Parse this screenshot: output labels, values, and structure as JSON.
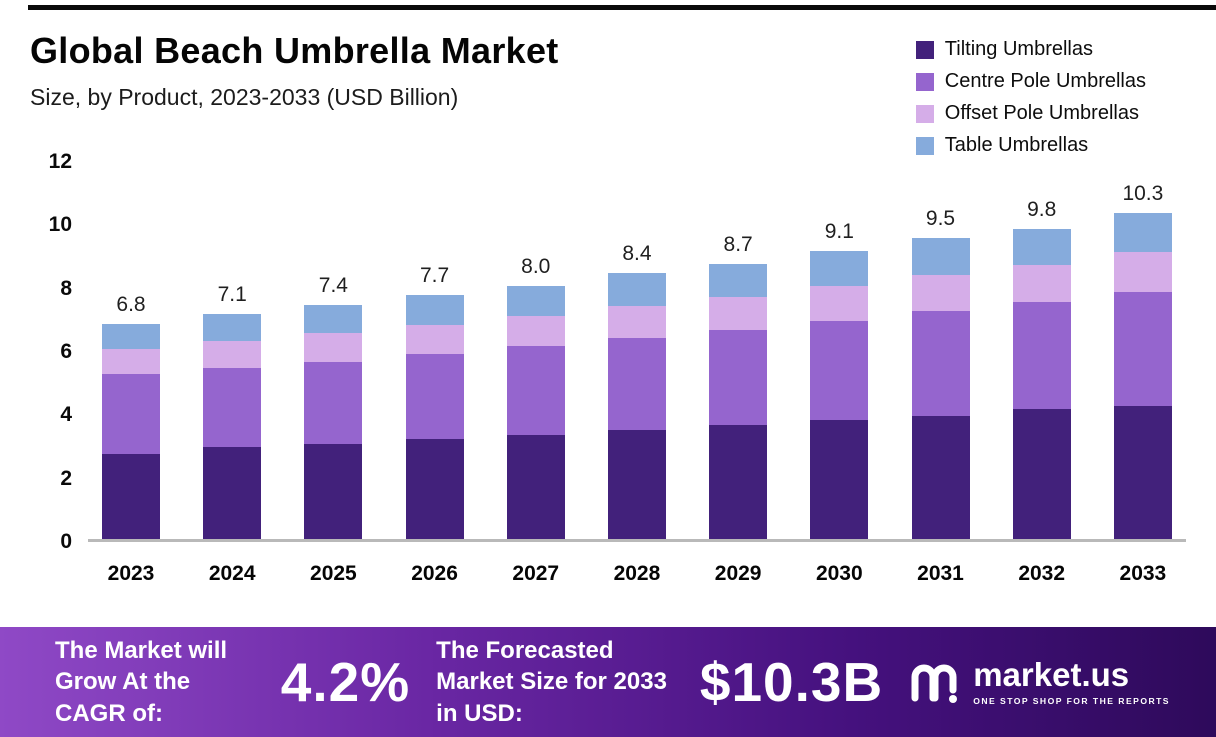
{
  "header": {
    "title": "Global Beach Umbrella Market",
    "subtitle": "Size, by Product, 2023-2033 (USD Billion)"
  },
  "chart_data": {
    "type": "bar",
    "stacked": true,
    "title": "Global Beach Umbrella Market Size, by Product, 2023-2033 (USD Billion)",
    "xlabel": "",
    "ylabel": "USD Billion",
    "ylim": [
      0,
      12
    ],
    "yticks": [
      0,
      2,
      4,
      6,
      8,
      10,
      12
    ],
    "grid": false,
    "legend_position": "top-right",
    "categories": [
      "2023",
      "2024",
      "2025",
      "2026",
      "2027",
      "2028",
      "2029",
      "2030",
      "2031",
      "2032",
      "2033"
    ],
    "series": [
      {
        "name": "Tilting Umbrellas",
        "color": "#42217b",
        "values": [
          2.7,
          2.9,
          3.0,
          3.15,
          3.3,
          3.45,
          3.6,
          3.75,
          3.9,
          4.1,
          4.2
        ]
      },
      {
        "name": "Centre Pole Umbrellas",
        "color": "#9565ce",
        "values": [
          2.5,
          2.5,
          2.6,
          2.7,
          2.8,
          2.9,
          3.0,
          3.15,
          3.3,
          3.4,
          3.6
        ]
      },
      {
        "name": "Offset Pole Umbrellas",
        "color": "#d5ade8",
        "values": [
          0.8,
          0.85,
          0.9,
          0.9,
          0.95,
          1.0,
          1.05,
          1.1,
          1.15,
          1.15,
          1.25
        ]
      },
      {
        "name": "Table Umbrellas",
        "color": "#86abdc",
        "values": [
          0.8,
          0.85,
          0.9,
          0.95,
          0.95,
          1.05,
          1.05,
          1.1,
          1.15,
          1.15,
          1.25
        ]
      }
    ],
    "totals": [
      "6.8",
      "7.1",
      "7.4",
      "7.7",
      "8.0",
      "8.4",
      "8.7",
      "9.1",
      "9.5",
      "9.8",
      "10.3"
    ]
  },
  "banner": {
    "cagr_label": "The Market will Grow At the CAGR of:",
    "cagr_value": "4.2%",
    "forecast_label": "The Forecasted Market Size for 2033 in USD:",
    "forecast_value": "$10.3B",
    "brand": "market.us",
    "tagline": "ONE STOP SHOP FOR THE REPORTS"
  }
}
